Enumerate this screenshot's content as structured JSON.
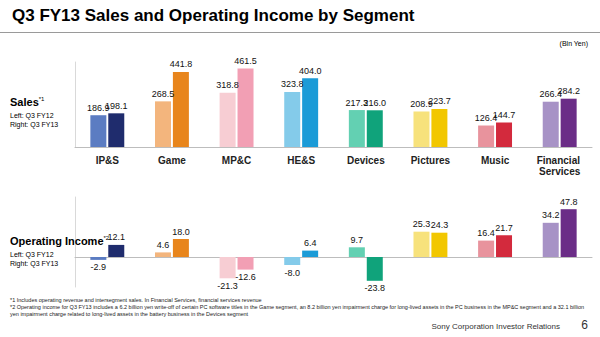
{
  "title": "Q3 FY13 Sales and Operating Income by Segment",
  "unit": "(Bln Yen)",
  "footnotes": [
    "*1 Includes operating revenue and intersegment sales. In Financial Services, financial services revenue",
    "*2 Operating income for Q3 FY13 includes a 6.2 billion yen write-off of certain PC software titles in the Game segment, an 8.2 billion yen impairment charge for long-lived assets in the PC business in the MP&C segment and a 32.1 billion yen impairment charge related to long-lived assets in the battery business in the Devices segment"
  ],
  "footer": "Sony Corporation Investor Relations",
  "page": "6",
  "chart_data": [
    {
      "type": "bar",
      "title": "Sales",
      "title_mark": "*1",
      "categories": [
        "IP&S",
        "Game",
        "MP&C",
        "HE&S",
        "Devices",
        "Pictures",
        "Music",
        "Financial Services"
      ],
      "series": [
        {
          "name": "Left: Q3 FY12",
          "colors": [
            "#5b7cc2",
            "#f3b57d",
            "#f7cdd3",
            "#84cbea",
            "#63d0b2",
            "#f7e27c",
            "#e8939d",
            "#a792c6"
          ],
          "values": [
            186.9,
            268.5,
            318.8,
            323.8,
            217.3,
            208.9,
            126.4,
            266.4
          ],
          "value_labels": [
            "186.9",
            "268.5",
            "318.8",
            "323.8",
            "217.3",
            "208.9",
            "126.4",
            "266.4"
          ]
        },
        {
          "name": "Right: Q3 FY13",
          "colors": [
            "#1f2c6d",
            "#e8851c",
            "#f29fb4",
            "#1b9bd7",
            "#10a37b",
            "#f2c700",
            "#d32a3d",
            "#6b2d87"
          ],
          "values": [
            198.1,
            441.8,
            461.5,
            404.0,
            216.0,
            223.7,
            144.7,
            284.2
          ],
          "value_labels": [
            "198.1",
            "441.8",
            "461.5",
            "404.0",
            "216.0",
            "223.7",
            "144.7",
            "284.2"
          ]
        }
      ],
      "ylim": [
        0,
        500
      ],
      "yticks": [],
      "grid": false,
      "data_labels": true,
      "tick_labels": "x"
    },
    {
      "type": "bar",
      "title": "Operating Income",
      "title_mark": "*2",
      "categories": [
        "IP&S",
        "Game",
        "MP&C",
        "HE&S",
        "Devices",
        "Pictures",
        "Music",
        "Financial Services"
      ],
      "series": [
        {
          "name": "Left: Q3 FY12",
          "colors": [
            "#5b7cc2",
            "#f3b57d",
            "#f7cdd3",
            "#84cbea",
            "#63d0b2",
            "#f7e27c",
            "#e8939d",
            "#a792c6"
          ],
          "values": [
            -2.9,
            4.6,
            -21.3,
            -8.0,
            9.7,
            25.3,
            16.4,
            34.2
          ],
          "value_labels": [
            "-2.9",
            "4.6",
            "-21.3",
            "-8.0",
            "9.7",
            "25.3",
            "16.4",
            "34.2"
          ]
        },
        {
          "name": "Right: Q3 FY13",
          "colors": [
            "#1f2c6d",
            "#e8851c",
            "#f29fb4",
            "#1b9bd7",
            "#10a37b",
            "#f2c700",
            "#d32a3d",
            "#6b2d87"
          ],
          "values": [
            12.1,
            18.0,
            -12.6,
            6.4,
            -23.8,
            24.3,
            21.7,
            47.8
          ],
          "value_labels": [
            "12.1",
            "18.0",
            "-12.6",
            "6.4",
            "-23.8",
            "24.3",
            "21.7",
            "47.8"
          ]
        }
      ],
      "ylim": [
        -30,
        60
      ],
      "yticks": [],
      "grid": false,
      "data_labels": true,
      "tick_labels": false
    }
  ]
}
